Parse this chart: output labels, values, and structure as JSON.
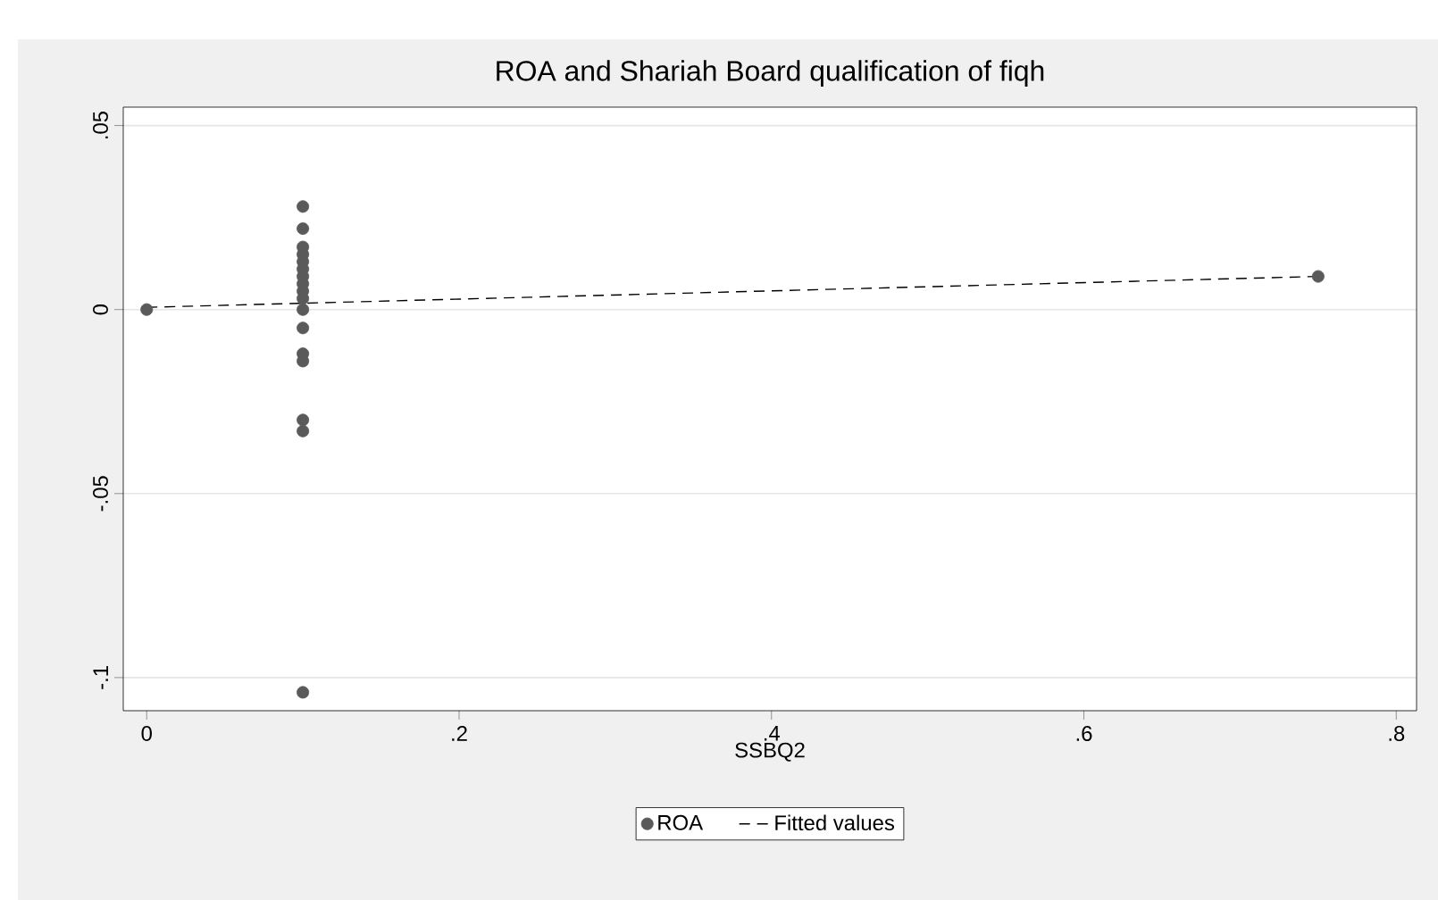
{
  "chart_data": {
    "type": "scatter",
    "title": "ROA and Shariah Board qualification of fiqh",
    "xlabel": "SSBQ2",
    "xlim": [
      -0.015,
      0.813
    ],
    "ylim": [
      -0.109,
      0.055
    ],
    "xticks": [
      0,
      {
        "value": 0.2,
        "label": ".2"
      },
      {
        "value": 0.4,
        "label": ".4"
      },
      {
        "value": 0.6,
        "label": ".6"
      },
      {
        "value": 0.8,
        "label": ".8"
      }
    ],
    "yticks": [
      {
        "value": -0.1,
        "label": "-.1"
      },
      {
        "value": -0.05,
        "label": "-.05"
      },
      0,
      {
        "value": 0.05,
        "label": ".05"
      }
    ],
    "grid": "y",
    "legend": "bottom",
    "series": [
      {
        "name": "ROA",
        "color": "#5a5a5a",
        "marker": "circle",
        "x": [
          0,
          0.1,
          0.1,
          0.1,
          0.1,
          0.1,
          0.1,
          0.1,
          0.1,
          0.1,
          0.1,
          0.1,
          0.1,
          0.1,
          0.1,
          0.1,
          0.1,
          0.1,
          0.75
        ],
        "values": [
          0,
          0.028,
          0.022,
          0.017,
          0.015,
          0.013,
          0.011,
          0.009,
          0.007,
          0.005,
          0.003,
          0,
          -0.005,
          -0.012,
          -0.014,
          -0.03,
          -0.033,
          -0.104,
          0.009
        ]
      },
      {
        "name": "Fitted values",
        "type": "line",
        "color": "#000000",
        "line_style": "dashed",
        "marker": "none",
        "x": [
          0,
          0.75
        ],
        "values": [
          0.0006,
          0.009
        ]
      }
    ]
  }
}
